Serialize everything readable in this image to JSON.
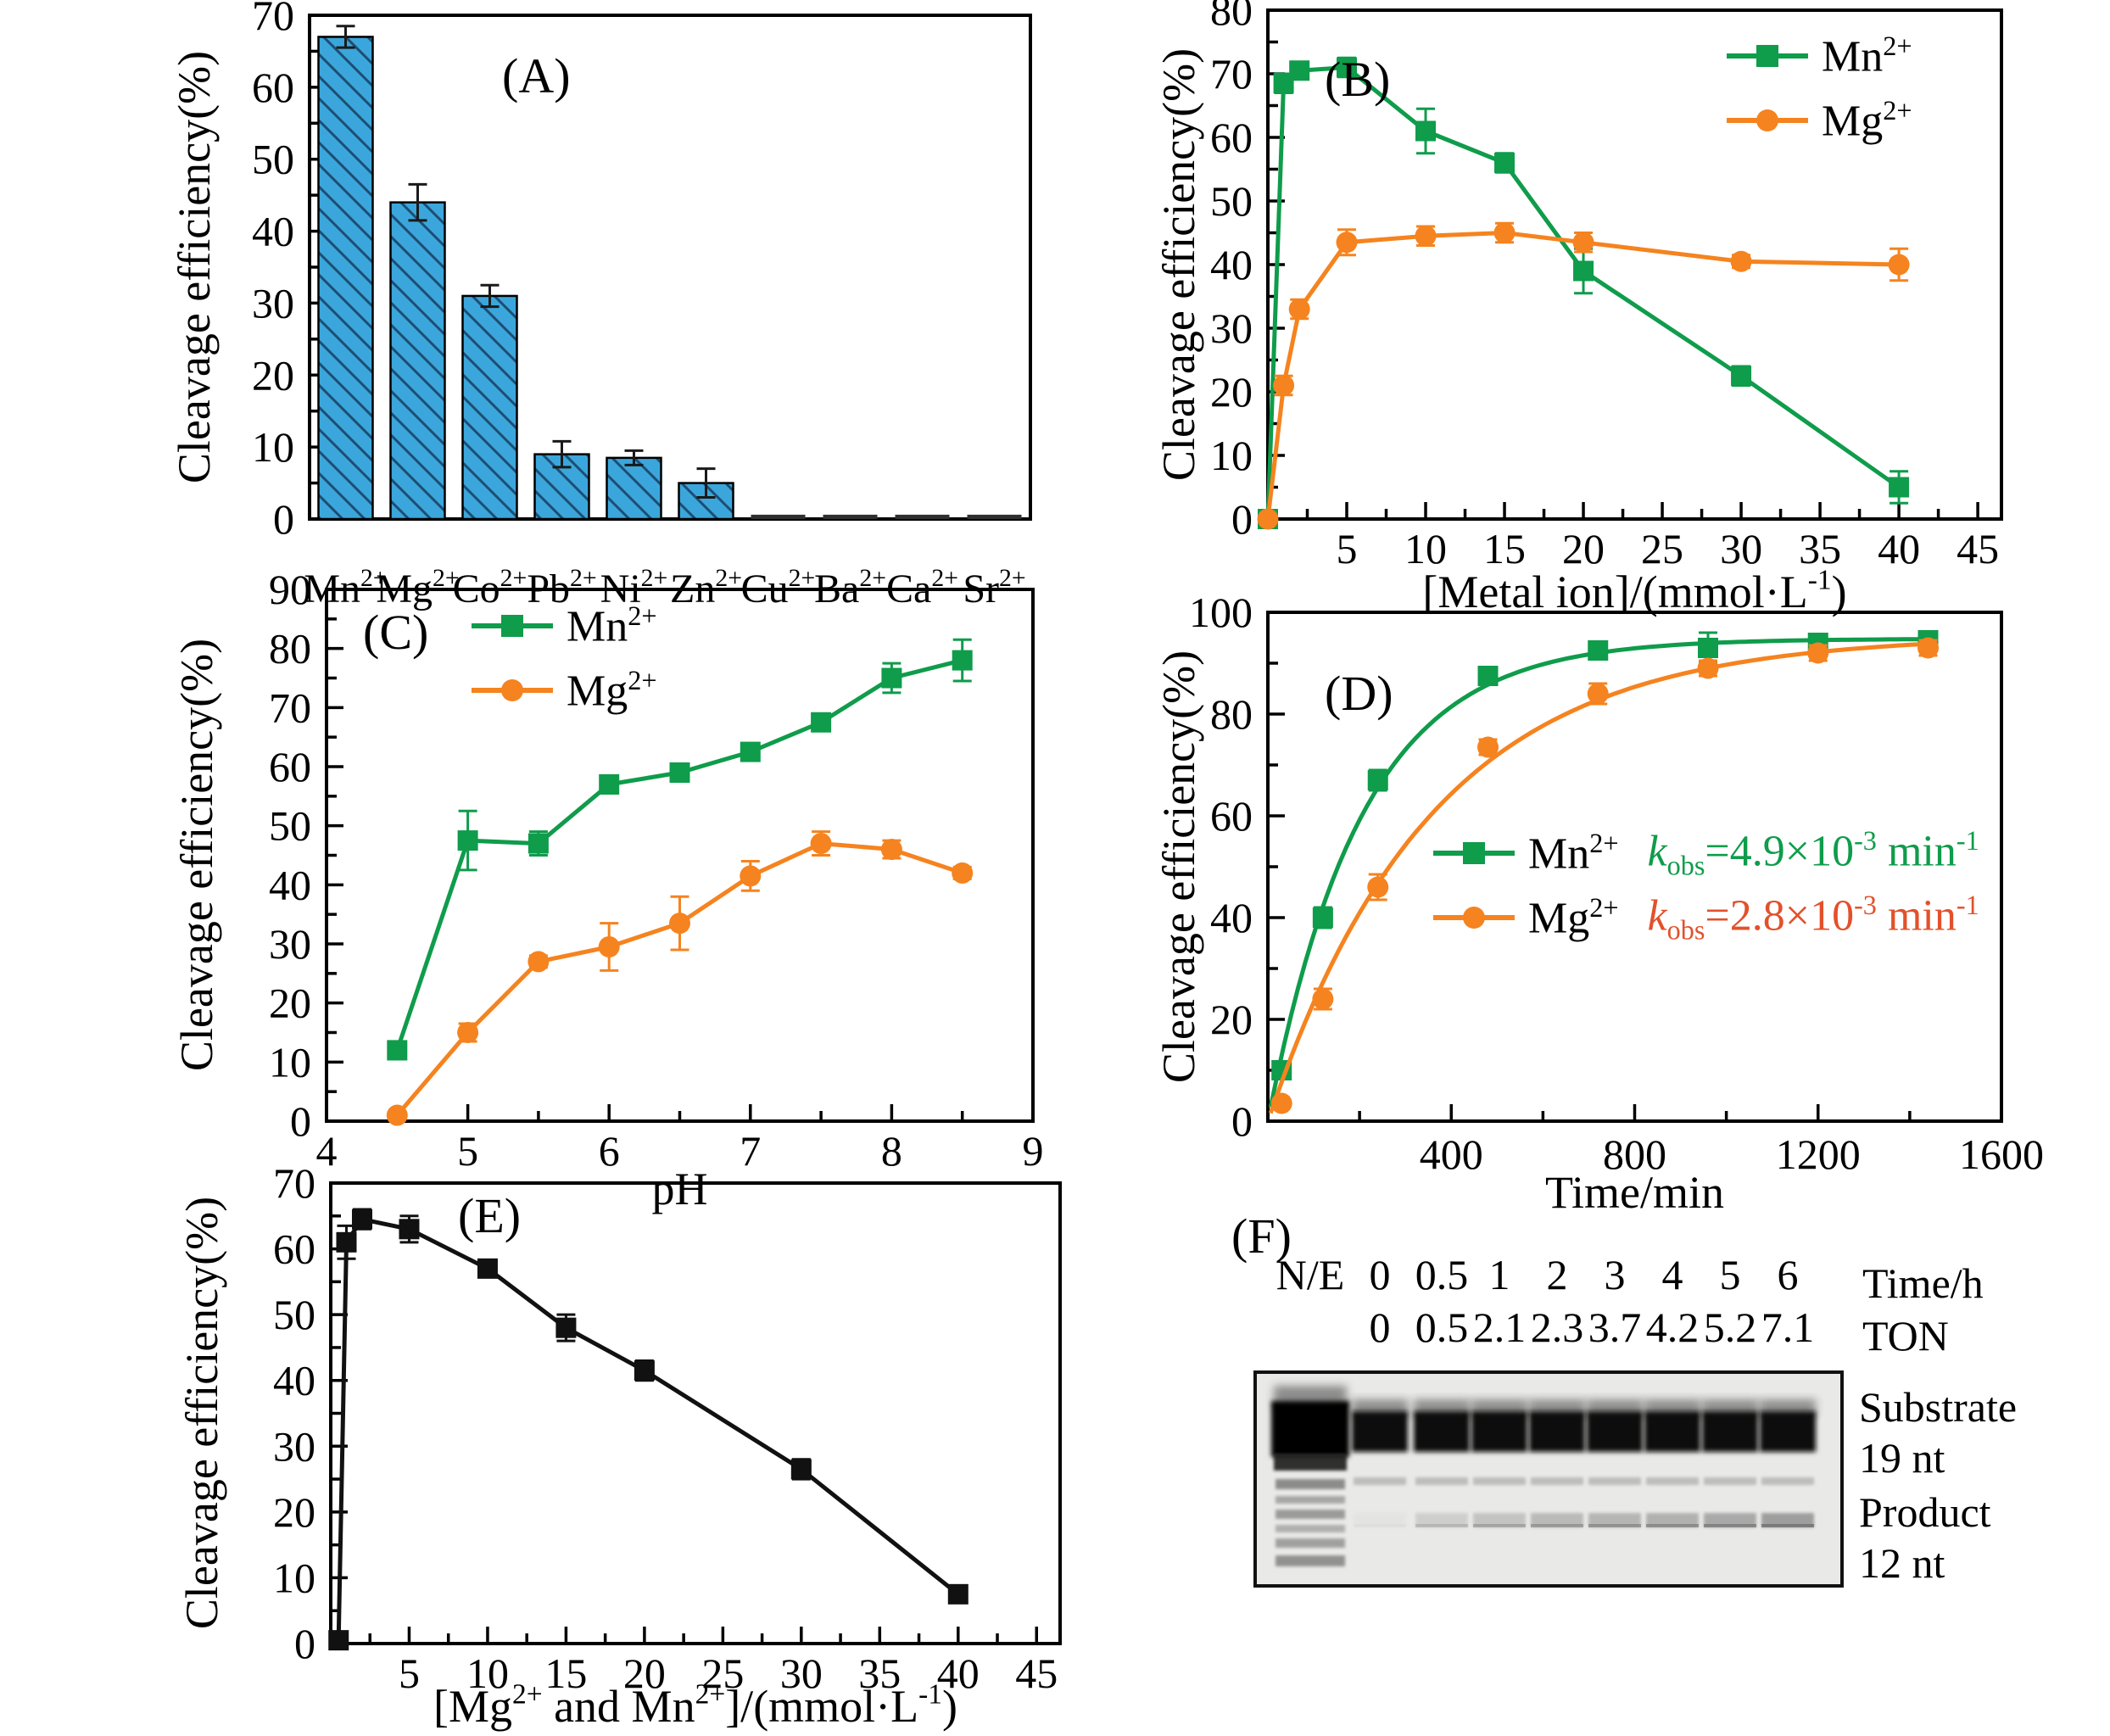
{
  "panel_labels": {
    "a": "(A)",
    "b": "(B)",
    "c": "(C)",
    "d": "(D)",
    "e": "(E)",
    "f": "(F)"
  },
  "shared": {
    "ylabel": "Cleavage efficiency(%)"
  },
  "colors": {
    "bar_blue": "#3BA6DB",
    "hatch": "#1D4E73",
    "dark_bar": "#2f2f2f",
    "green": "#0F9C4B",
    "orange": "#F5831F",
    "kobs_red": "#E2512B",
    "black": "#111111"
  },
  "chart_data": [
    {
      "id": "A",
      "type": "bar",
      "title": "(A)",
      "ylabel": "Cleavage efficiency(%)",
      "ylim": [
        0,
        70
      ],
      "yticks": [
        0,
        10,
        20,
        30,
        40,
        50,
        60,
        70
      ],
      "yminor": 5,
      "categories": [
        "Mn^{2+}",
        "Mg^{2+}",
        "Co^{2+}",
        "Pb^{2+}",
        "Ni^{2+}",
        "Zn^{2+}",
        "Cu^{2+}",
        "Ba^{2+}",
        "Ca^{2+}",
        "Sr^{2+}"
      ],
      "values": [
        67,
        44,
        31,
        9,
        8.5,
        5,
        0.6,
        0.6,
        0.6,
        0.6
      ],
      "errors": [
        1.5,
        2.5,
        1.5,
        1.8,
        1,
        2,
        0,
        0,
        0,
        0
      ],
      "hatched": [
        true,
        true,
        true,
        true,
        true,
        true,
        false,
        false,
        false,
        false
      ]
    },
    {
      "id": "B",
      "type": "line",
      "title": "(B)",
      "xlabel": "[Metal ion]/(mmol·L^{-1})",
      "ylabel": "Cleavage efficiency(%)",
      "xlim": [
        0,
        46.5
      ],
      "ylim": [
        0,
        80
      ],
      "xticks": [
        5,
        10,
        15,
        20,
        25,
        30,
        35,
        40,
        45
      ],
      "xminor": 2.5,
      "yticks": [
        0,
        10,
        20,
        30,
        40,
        50,
        60,
        70,
        80
      ],
      "yminor": 5,
      "legend_position": "top-right",
      "series": [
        {
          "name": "Mn^{2+}",
          "color": "#0F9C4B",
          "marker": "square",
          "x": [
            0,
            1,
            2,
            5,
            10,
            15,
            20,
            30,
            40
          ],
          "y": [
            0,
            68.5,
            70.5,
            71,
            61,
            56,
            39,
            22.5,
            5
          ],
          "err": [
            0,
            1.5,
            1,
            1.5,
            3.5,
            1.5,
            3.5,
            1.5,
            2.5
          ]
        },
        {
          "name": "Mg^{2+}",
          "color": "#F5831F",
          "marker": "circle",
          "x": [
            0,
            1,
            2,
            5,
            10,
            15,
            20,
            30,
            40
          ],
          "y": [
            0,
            21,
            33,
            43.5,
            44.5,
            45,
            43.5,
            40.5,
            40
          ],
          "err": [
            0,
            1.5,
            1.5,
            2,
            1.5,
            1.5,
            1.5,
            1,
            2.5
          ]
        }
      ]
    },
    {
      "id": "C",
      "type": "line",
      "title": "(C)",
      "xlabel": "pH",
      "ylabel": "Cleavage efficiency(%)",
      "xlim": [
        4,
        9
      ],
      "ylim": [
        0,
        90
      ],
      "xticks": [
        4,
        5,
        6,
        7,
        8,
        9
      ],
      "xminor": 0.5,
      "yticks": [
        0,
        10,
        20,
        30,
        40,
        50,
        60,
        70,
        80,
        90
      ],
      "yminor": 5,
      "legend_position": "top-left",
      "series": [
        {
          "name": "Mn^{2+}",
          "color": "#0F9C4B",
          "marker": "square",
          "x": [
            4.5,
            5,
            5.5,
            6,
            6.5,
            7,
            7.5,
            8,
            8.5
          ],
          "y": [
            12,
            47.5,
            47,
            57,
            59,
            62.5,
            67.5,
            75,
            78
          ],
          "err": [
            1.5,
            5,
            2,
            1.5,
            1.5,
            1,
            1,
            2.5,
            3.5
          ]
        },
        {
          "name": "Mg^{2+}",
          "color": "#F5831F",
          "marker": "circle",
          "x": [
            4.5,
            5,
            5.5,
            6,
            6.5,
            7,
            7.5,
            8,
            8.5
          ],
          "y": [
            1,
            15,
            27,
            29.5,
            33.5,
            41.5,
            47,
            46,
            42
          ],
          "err": [
            0.5,
            1.5,
            1,
            4,
            4.5,
            2.5,
            2,
            1.5,
            1
          ]
        }
      ]
    },
    {
      "id": "D",
      "type": "line",
      "title": "(D)",
      "xlabel": "Time/min",
      "ylabel": "Cleavage efficiency(%)",
      "xlim": [
        0,
        1600
      ],
      "ylim": [
        0,
        100
      ],
      "xticks": [
        400,
        800,
        1200,
        1600
      ],
      "xminor": 200,
      "yticks": [
        0,
        20,
        40,
        60,
        80,
        100
      ],
      "yminor": 10,
      "legend_position": "inside-middle",
      "series": [
        {
          "name": "Mn^{2+}",
          "color": "#0F9C4B",
          "marker": "square",
          "kobs_label": "k_{obs}=4.9×10^{-3} min^{-1}",
          "kobs_color": "#0F9C4B",
          "fit": {
            "amplitude": 94.8,
            "k": 0.0049
          },
          "x": [
            30,
            120,
            240,
            480,
            720,
            960,
            1200,
            1440
          ],
          "y": [
            10,
            40,
            67,
            87.5,
            92.5,
            93,
            94,
            94.5
          ],
          "err": [
            1,
            2,
            2,
            1,
            1,
            3,
            1.5,
            1
          ]
        },
        {
          "name": "Mg^{2+}",
          "color": "#F5831F",
          "marker": "circle",
          "kobs_label": "k_{obs}=2.8×10^{-3} min^{-1}",
          "kobs_color": "#E2512B",
          "fit": {
            "amplitude": 95.5,
            "k": 0.0028
          },
          "x": [
            30,
            120,
            240,
            480,
            720,
            960,
            1200,
            1440
          ],
          "y": [
            3.5,
            24,
            46,
            73.5,
            84,
            89,
            92,
            93
          ],
          "err": [
            0.5,
            2,
            2.5,
            1.5,
            2,
            1.5,
            1.5,
            1.5
          ]
        }
      ]
    },
    {
      "id": "E",
      "type": "line",
      "title": "(E)",
      "xlabel": "[Mg^{2+} and Mn^{2+}]/(mmol·L^{-1})",
      "ylabel": "Cleavage efficiency(%)",
      "xlim": [
        0,
        46.5
      ],
      "ylim": [
        0,
        70
      ],
      "xticks": [
        5,
        10,
        15,
        20,
        25,
        30,
        35,
        40,
        45
      ],
      "xminor": 2.5,
      "yticks": [
        0,
        10,
        20,
        30,
        40,
        50,
        60,
        70
      ],
      "yminor": 5,
      "legend_position": "none",
      "series": [
        {
          "name": "",
          "color": "#111111",
          "marker": "square",
          "x": [
            0.5,
            1,
            2,
            5,
            10,
            15,
            20,
            30,
            40
          ],
          "y": [
            0.5,
            61,
            64.5,
            63,
            57,
            48,
            41.5,
            26.5,
            7.5
          ],
          "err": [
            0.3,
            2.5,
            1.5,
            2,
            1,
            2,
            1.5,
            1.5,
            0.8
          ]
        }
      ]
    }
  ],
  "gel": {
    "panel_label": "(F)",
    "lane_labels": [
      "N/E",
      "0",
      "0.5",
      "1",
      "2",
      "3",
      "4",
      "5",
      "6"
    ],
    "time_header": "Time/h",
    "ton_values": [
      "0",
      "0.5",
      "2.1",
      "2.3",
      "3.7",
      "4.2",
      "5.2",
      "7.1"
    ],
    "ton_header": "TON",
    "substrate_label": "Substrate",
    "substrate_size": "19 nt",
    "product_label": "Product",
    "product_size": "12 nt",
    "product_band_opacity": [
      0.05,
      0.28,
      0.4,
      0.5,
      0.55,
      0.6,
      0.68,
      0.8
    ]
  }
}
